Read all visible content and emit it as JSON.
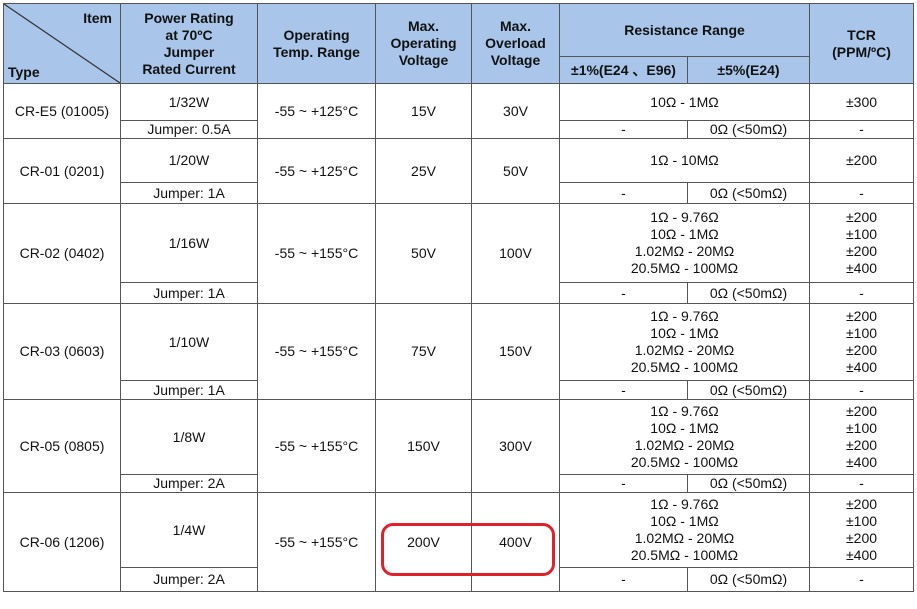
{
  "header": {
    "item": "Item",
    "type": "Type",
    "power": "Power Rating\nat 70ºC\nJumper\nRated Current",
    "temp": "Operating\nTemp. Range",
    "maxop": "Max.\nOperating\nVoltage",
    "maxov": "Max.\nOverload\nVoltage",
    "resistance": "Resistance Range",
    "res1": "±1%(E24 、E96)",
    "res5": "±5%(E24)",
    "tcr": "TCR\n(PPM/ºC)"
  },
  "rows": [
    {
      "type": "CR-E5 (01005)",
      "power": "1/32W",
      "jumper": "Jumper: 0.5A",
      "temp": "-55 ~ +125°C",
      "op": "15V",
      "ov": "30V",
      "range": "10Ω - 1MΩ",
      "tcr": "±300",
      "j_res1": "-",
      "j_res5": "0Ω (<50mΩ)",
      "j_tcr": "-"
    },
    {
      "type": "CR-01 (0201)",
      "power": "1/20W",
      "jumper": "Jumper: 1A",
      "temp": "-55 ~ +125°C",
      "op": "25V",
      "ov": "50V",
      "range": "1Ω - 10MΩ",
      "tcr": "±200",
      "j_res1": "-",
      "j_res5": "0Ω (<50mΩ)",
      "j_tcr": "-"
    },
    {
      "type": "CR-02 (0402)",
      "power": "1/16W",
      "jumper": "Jumper: 1A",
      "temp": "-55 ~ +155°C",
      "op": "50V",
      "ov": "100V",
      "range": "1Ω - 9.76Ω\n10Ω - 1MΩ\n1.02MΩ - 20MΩ\n20.5MΩ - 100MΩ",
      "tcr": "±200\n±100\n±200\n±400",
      "j_res1": "-",
      "j_res5": "0Ω (<50mΩ)",
      "j_tcr": "-"
    },
    {
      "type": "CR-03 (0603)",
      "power": "1/10W",
      "jumper": "Jumper: 1A",
      "temp": "-55 ~ +155°C",
      "op": "75V",
      "ov": "150V",
      "range": "1Ω - 9.76Ω\n10Ω - 1MΩ\n1.02MΩ - 20MΩ\n20.5MΩ - 100MΩ",
      "tcr": "±200\n±100\n±200\n±400",
      "j_res1": "-",
      "j_res5": "0Ω (<50mΩ)",
      "j_tcr": "-"
    },
    {
      "type": "CR-05 (0805)",
      "power": "1/8W",
      "jumper": "Jumper: 2A",
      "temp": "-55 ~ +155°C",
      "op": "150V",
      "ov": "300V",
      "range": "1Ω - 9.76Ω\n10Ω - 1MΩ\n1.02MΩ - 20MΩ\n20.5MΩ - 100MΩ",
      "tcr": "±200\n±100\n±200\n±400",
      "j_res1": "-",
      "j_res5": "0Ω (<50mΩ)",
      "j_tcr": "-"
    },
    {
      "type": "CR-06 (1206)",
      "power": "1/4W",
      "jumper": "Jumper: 2A",
      "temp": "-55 ~ +155°C",
      "op": "200V",
      "ov": "400V",
      "range": "1Ω - 9.76Ω\n10Ω - 1MΩ\n1.02MΩ - 20MΩ\n20.5MΩ - 100MΩ",
      "tcr": "±200\n±100\n±200\n±400",
      "j_res1": "-",
      "j_res5": "0Ω (<50mΩ)",
      "j_tcr": "-"
    }
  ],
  "highlight": {
    "color": "#e0202a"
  }
}
